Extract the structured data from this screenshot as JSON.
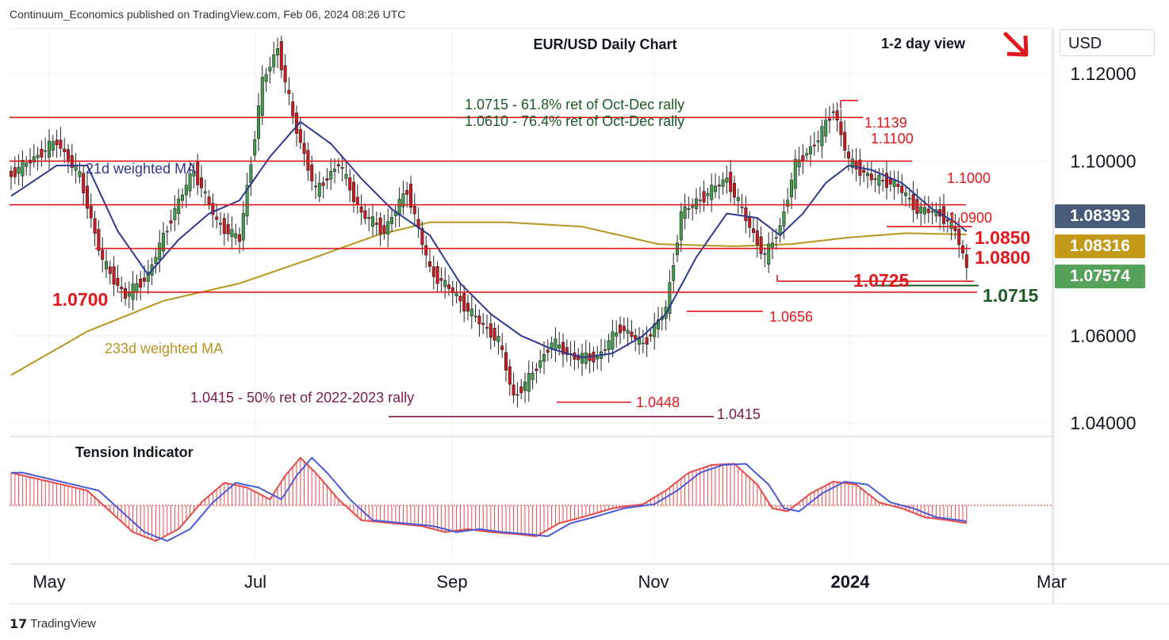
{
  "header": {
    "text": "Continuum_Economics published on TradingView.com, Feb 06, 2024 08:26 UTC"
  },
  "branding": {
    "logo_text": "TradingView"
  },
  "currency_button": {
    "label": "USD"
  },
  "colors": {
    "up": "#3f9f4a",
    "down": "#d0191f",
    "red_line": "#e0171c",
    "ma21": "#2f3a8f",
    "ma233": "#b8951e",
    "tag_gray": "#475b7a",
    "tag_gold": "#c49a1a",
    "tag_green": "#55a25a",
    "purple": "#7a1a4a",
    "dark_green": "#1e5a25"
  },
  "price_tags": [
    {
      "value": "1.08393",
      "color": "#475b7a"
    },
    {
      "value": "1.08316",
      "color": "#c49a1a"
    },
    {
      "value": "1.07574",
      "color": "#55a25a"
    }
  ],
  "chart_data": {
    "type": "candlestick",
    "title": "EUR/USD Daily Chart",
    "subtitle": "1-2 day view",
    "y_axis": {
      "ticks": [
        "1.12000",
        "1.10000",
        "1.06000",
        "1.04000"
      ],
      "ylim": [
        1.0375,
        1.13
      ]
    },
    "x_axis": {
      "ticks": [
        "May",
        "Jul",
        "Sep",
        "Nov",
        "2024",
        "Mar"
      ]
    },
    "annotations": {
      "ret_note_1": "1.0715 - 61.8% ret of Oct-Dec rally",
      "ret_note_2": "1.0610 - 76.4% ret of Oct-Dec rally",
      "ret_note_3": "1.0415 - 50% ret of 2022-2023 rally",
      "ma21_label": "21d weighted MA",
      "ma233_label": "233d weighted MA",
      "indicator_label": "Tension Indicator"
    },
    "levels": [
      {
        "label": "1.1139",
        "value": 1.1139
      },
      {
        "label": "1.1100",
        "value": 1.11
      },
      {
        "label": "1.1000",
        "value": 1.1
      },
      {
        "label": "1.0900",
        "value": 1.09
      },
      {
        "label": "1.0850",
        "value": 1.085
      },
      {
        "label": "1.0800",
        "value": 1.08
      },
      {
        "label": "1.0725",
        "value": 1.0725
      },
      {
        "label": "1.0715",
        "value": 1.0715
      },
      {
        "label": "1.0700",
        "value": 1.07
      },
      {
        "label": "1.0656",
        "value": 1.0656
      },
      {
        "label": "1.0448",
        "value": 1.0448
      },
      {
        "label": "1.0415",
        "value": 1.0415
      }
    ],
    "price_path": [
      [
        0,
        1.097
      ],
      [
        12,
        1.1045
      ],
      [
        18,
        1.0965
      ],
      [
        24,
        1.077
      ],
      [
        30,
        1.069
      ],
      [
        36,
        1.074
      ],
      [
        42,
        1.087
      ],
      [
        48,
        1.098
      ],
      [
        54,
        1.086
      ],
      [
        60,
        1.082
      ],
      [
        66,
        1.118
      ],
      [
        70,
        1.126
      ],
      [
        74,
        1.11
      ],
      [
        80,
        1.093
      ],
      [
        86,
        1.0995
      ],
      [
        92,
        1.088
      ],
      [
        98,
        1.084
      ],
      [
        104,
        1.0935
      ],
      [
        110,
        1.075
      ],
      [
        116,
        1.07
      ],
      [
        122,
        1.064
      ],
      [
        128,
        1.059
      ],
      [
        132,
        1.046
      ],
      [
        136,
        1.05
      ],
      [
        142,
        1.0585
      ],
      [
        148,
        1.055
      ],
      [
        154,
        1.055
      ],
      [
        160,
        1.062
      ],
      [
        166,
        1.058
      ],
      [
        172,
        1.066
      ],
      [
        176,
        1.088
      ],
      [
        182,
        1.092
      ],
      [
        188,
        1.096
      ],
      [
        194,
        1.085
      ],
      [
        198,
        1.078
      ],
      [
        202,
        1.085
      ],
      [
        206,
        1.099
      ],
      [
        212,
        1.105
      ],
      [
        216,
        1.112
      ],
      [
        220,
        1.1
      ],
      [
        226,
        1.096
      ],
      [
        232,
        1.095
      ],
      [
        238,
        1.089
      ],
      [
        244,
        1.088
      ],
      [
        248,
        1.084
      ],
      [
        251,
        1.0757
      ]
    ],
    "ma21": [
      [
        0,
        1.092
      ],
      [
        12,
        1.099
      ],
      [
        20,
        1.099
      ],
      [
        28,
        1.084
      ],
      [
        36,
        1.074
      ],
      [
        44,
        1.082
      ],
      [
        52,
        1.088
      ],
      [
        60,
        1.091
      ],
      [
        68,
        1.101
      ],
      [
        76,
        1.109
      ],
      [
        84,
        1.104
      ],
      [
        92,
        1.096
      ],
      [
        100,
        1.089
      ],
      [
        110,
        1.083
      ],
      [
        118,
        1.072
      ],
      [
        126,
        1.065
      ],
      [
        134,
        1.06
      ],
      [
        142,
        1.057
      ],
      [
        150,
        1.055
      ],
      [
        158,
        1.056
      ],
      [
        166,
        1.06
      ],
      [
        172,
        1.065
      ],
      [
        180,
        1.078
      ],
      [
        188,
        1.088
      ],
      [
        196,
        1.087
      ],
      [
        202,
        1.083
      ],
      [
        208,
        1.088
      ],
      [
        214,
        1.095
      ],
      [
        220,
        1.099
      ],
      [
        226,
        1.098
      ],
      [
        234,
        1.095
      ],
      [
        242,
        1.089
      ],
      [
        248,
        1.086
      ],
      [
        251,
        1.0839
      ]
    ],
    "ma233": [
      [
        0,
        1.051
      ],
      [
        20,
        1.061
      ],
      [
        40,
        1.068
      ],
      [
        60,
        1.072
      ],
      [
        80,
        1.078
      ],
      [
        96,
        1.083
      ],
      [
        110,
        1.086
      ],
      [
        130,
        1.086
      ],
      [
        150,
        1.085
      ],
      [
        170,
        1.081
      ],
      [
        190,
        1.0805
      ],
      [
        205,
        1.081
      ],
      [
        220,
        1.0825
      ],
      [
        235,
        1.0835
      ],
      [
        251,
        1.0832
      ]
    ],
    "tension": [
      [
        0,
        0.55
      ],
      [
        10,
        0.4
      ],
      [
        20,
        0.25
      ],
      [
        26,
        -0.1
      ],
      [
        32,
        -0.45
      ],
      [
        38,
        -0.6
      ],
      [
        44,
        -0.4
      ],
      [
        50,
        0.05
      ],
      [
        56,
        0.38
      ],
      [
        62,
        0.3
      ],
      [
        68,
        0.1
      ],
      [
        72,
        0.5
      ],
      [
        76,
        0.8
      ],
      [
        80,
        0.55
      ],
      [
        86,
        0.1
      ],
      [
        92,
        -0.25
      ],
      [
        100,
        -0.3
      ],
      [
        108,
        -0.35
      ],
      [
        114,
        -0.45
      ],
      [
        120,
        -0.4
      ],
      [
        126,
        -0.45
      ],
      [
        132,
        -0.48
      ],
      [
        138,
        -0.52
      ],
      [
        144,
        -0.3
      ],
      [
        150,
        -0.2
      ],
      [
        158,
        -0.05
      ],
      [
        166,
        0.02
      ],
      [
        172,
        0.25
      ],
      [
        178,
        0.55
      ],
      [
        184,
        0.68
      ],
      [
        190,
        0.7
      ],
      [
        196,
        0.35
      ],
      [
        200,
        -0.05
      ],
      [
        204,
        -0.1
      ],
      [
        210,
        0.2
      ],
      [
        216,
        0.4
      ],
      [
        222,
        0.35
      ],
      [
        228,
        0.05
      ],
      [
        234,
        -0.05
      ],
      [
        240,
        -0.2
      ],
      [
        246,
        -0.25
      ],
      [
        251,
        -0.3
      ]
    ]
  }
}
